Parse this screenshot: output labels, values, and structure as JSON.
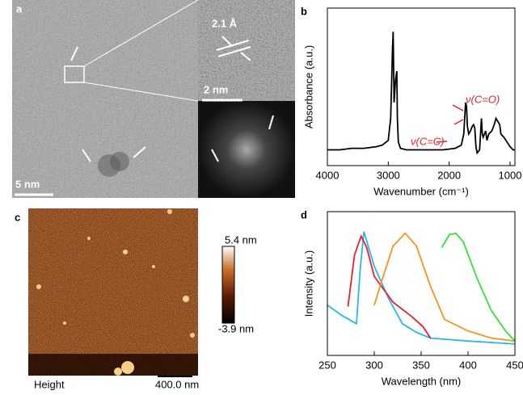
{
  "panel_a": {
    "label": "a",
    "lattice": "2.1 Å",
    "inset_scale": "2 nm",
    "scale": "5 nm"
  },
  "panel_c": {
    "label": "c",
    "max": "5.4 nm",
    "min": "-3.9 nm",
    "channel": "Height",
    "scale": "400.0 nm"
  },
  "chart_data": [
    {
      "type": "line",
      "label": "b",
      "x_label": "Wavenumber (cm⁻¹)",
      "y_label": "Absorbance (a.u.)",
      "annotations": [
        "ν(C=O)",
        "ν(C=C)"
      ],
      "xlim": [
        4000,
        920
      ],
      "xticks": [
        4000,
        3000,
        2000,
        1000
      ],
      "ylim": [
        0,
        1
      ],
      "series": [
        {
          "color": "#000000",
          "x": [
            4000,
            3800,
            3600,
            3400,
            3200,
            3100,
            3000,
            2960,
            2930,
            2920,
            2905,
            2880,
            2860,
            2850,
            2835,
            2800,
            2700,
            2500,
            2300,
            2100,
            1900,
            1800,
            1760,
            1730,
            1715,
            1700,
            1680,
            1650,
            1620,
            1600,
            1580,
            1560,
            1540,
            1500,
            1470,
            1455,
            1440,
            1400,
            1380,
            1350,
            1300,
            1260,
            1230,
            1200,
            1170,
            1150,
            1100,
            1050,
            1000,
            950,
            920
          ],
          "values": [
            0.1,
            0.1,
            0.11,
            0.11,
            0.12,
            0.13,
            0.16,
            0.3,
            0.75,
            0.85,
            0.4,
            0.55,
            0.6,
            0.3,
            0.15,
            0.11,
            0.1,
            0.1,
            0.1,
            0.1,
            0.11,
            0.13,
            0.2,
            0.4,
            0.38,
            0.25,
            0.2,
            0.22,
            0.25,
            0.26,
            0.24,
            0.12,
            0.08,
            0.1,
            0.3,
            0.2,
            0.18,
            0.22,
            0.16,
            0.2,
            0.22,
            0.26,
            0.3,
            0.28,
            0.26,
            0.2,
            0.18,
            0.15,
            0.12,
            0.1,
            0.1
          ]
        }
      ]
    },
    {
      "type": "line",
      "label": "d",
      "x_label": "Wavelength (nm)",
      "y_label": "Intensity (a.u.)",
      "xlim": [
        250,
        450
      ],
      "xticks": [
        250,
        300,
        350,
        400,
        450
      ],
      "ylim": [
        0,
        1
      ],
      "series": [
        {
          "color": "#29b6f0",
          "x": [
            250,
            265,
            281,
            285,
            289,
            300,
            315,
            330,
            345,
            360,
            400,
            450
          ],
          "values": [
            0.35,
            0.28,
            0.22,
            0.6,
            0.86,
            0.62,
            0.4,
            0.22,
            0.16,
            0.12,
            0.1,
            0.08
          ]
        },
        {
          "color": "#e8202a",
          "x": [
            272,
            279,
            286,
            292,
            300,
            320,
            340,
            352,
            360
          ],
          "values": [
            0.34,
            0.7,
            0.83,
            0.75,
            0.55,
            0.37,
            0.27,
            0.2,
            0.12
          ]
        },
        {
          "color": "#f7941d",
          "x": [
            300,
            310,
            320,
            333,
            345,
            360,
            375,
            400,
            425,
            450
          ],
          "values": [
            0.35,
            0.56,
            0.76,
            0.85,
            0.76,
            0.48,
            0.25,
            0.17,
            0.12,
            0.1
          ]
        },
        {
          "color": "#39e03a",
          "x": [
            372,
            380,
            387,
            395,
            410,
            425,
            440,
            450
          ],
          "values": [
            0.75,
            0.84,
            0.85,
            0.79,
            0.53,
            0.31,
            0.17,
            0.1
          ]
        }
      ]
    }
  ]
}
